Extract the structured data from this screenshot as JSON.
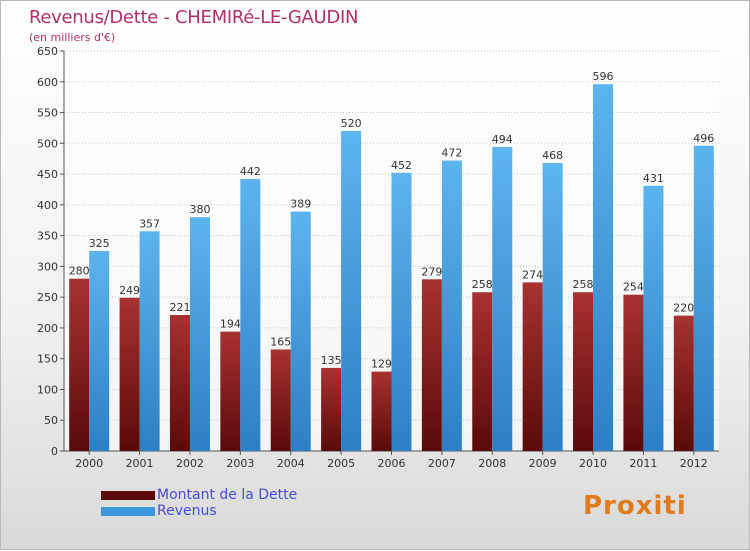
{
  "title": "Revenus/Dette - CHEMIRé-LE-GAUDIN",
  "subtitle": "(en milliers d'€)",
  "brand": "Proxiti",
  "colors": {
    "dette": "#8b1a1a",
    "revenus": "#3a96dd",
    "title": "#b0306a",
    "legend_text": "#4b4bd6"
  },
  "chart_data": {
    "type": "bar",
    "title": "Revenus/Dette - CHEMIRé-LE-GAUDIN",
    "ylabel": "(en milliers d'€)",
    "categories": [
      "2000",
      "2001",
      "2002",
      "2003",
      "2004",
      "2005",
      "2006",
      "2007",
      "2008",
      "2009",
      "2010",
      "2011",
      "2012"
    ],
    "series": [
      {
        "name": "Montant de la Dette",
        "values": [
          280,
          249,
          221,
          194,
          165,
          135,
          129,
          279,
          258,
          274,
          258,
          254,
          220
        ]
      },
      {
        "name": "Revenus",
        "values": [
          325,
          357,
          380,
          442,
          389,
          520,
          452,
          472,
          494,
          468,
          596,
          431,
          496
        ]
      }
    ],
    "ylim": [
      0,
      650
    ],
    "yticks": [
      0,
      50,
      100,
      150,
      200,
      250,
      300,
      350,
      400,
      450,
      500,
      550,
      600,
      650
    ],
    "grid": true,
    "legend": "bottom-left"
  }
}
